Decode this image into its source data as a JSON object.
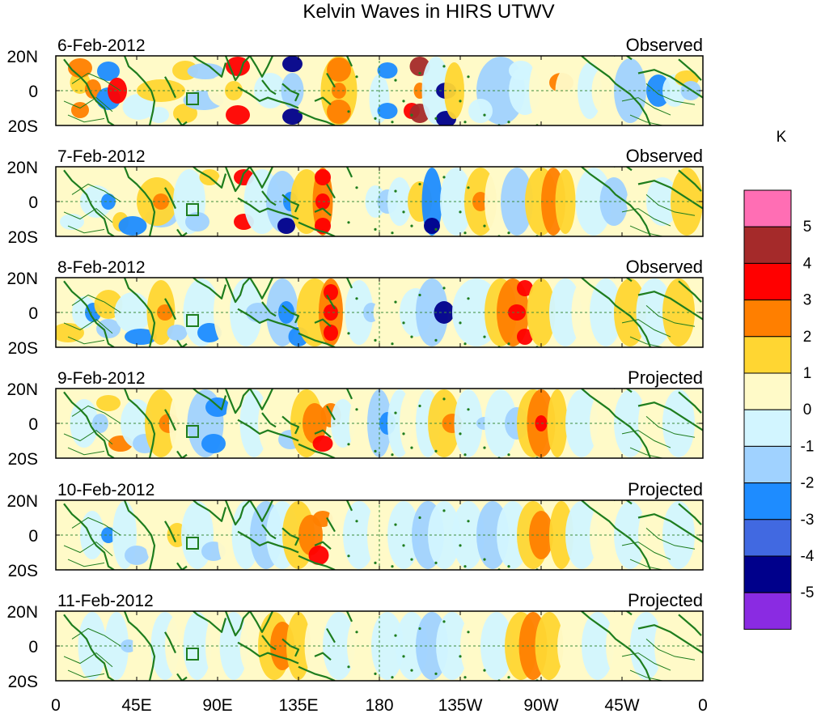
{
  "figure": {
    "title": "Kelvin Waves in HIRS UTWV",
    "units": "K"
  },
  "panels": [
    {
      "date": "6-Feb-2012",
      "status": "Observed"
    },
    {
      "date": "7-Feb-2012",
      "status": "Observed"
    },
    {
      "date": "8-Feb-2012",
      "status": "Observed"
    },
    {
      "date": "9-Feb-2012",
      "status": "Projected"
    },
    {
      "date": "10-Feb-2012",
      "status": "Projected"
    },
    {
      "date": "11-Feb-2012",
      "status": "Projected"
    }
  ],
  "lat_labels": [
    "20N",
    "0",
    "20S"
  ],
  "lon_labels": [
    "0",
    "45E",
    "90E",
    "135E",
    "180",
    "135W",
    "90W",
    "45W",
    "0"
  ],
  "colorbar": {
    "labels": [
      "5",
      "4",
      "3",
      "2",
      "1",
      "0",
      "-1",
      "-2",
      "-3",
      "-4",
      "-5"
    ],
    "colors": [
      "#ff6eb4",
      "#a52a2a",
      "#ff0000",
      "#ff7f00",
      "#ffd632",
      "#fffac8",
      "#d2f5ff",
      "#a0d2ff",
      "#1e8cff",
      "#4169e1",
      "#00008b",
      "#8a2be2"
    ]
  },
  "colors": {
    "coast": "#1e7d1e",
    "neutral_positive": "#fffac8",
    "neutral_negative": "#d2f5ff"
  }
}
